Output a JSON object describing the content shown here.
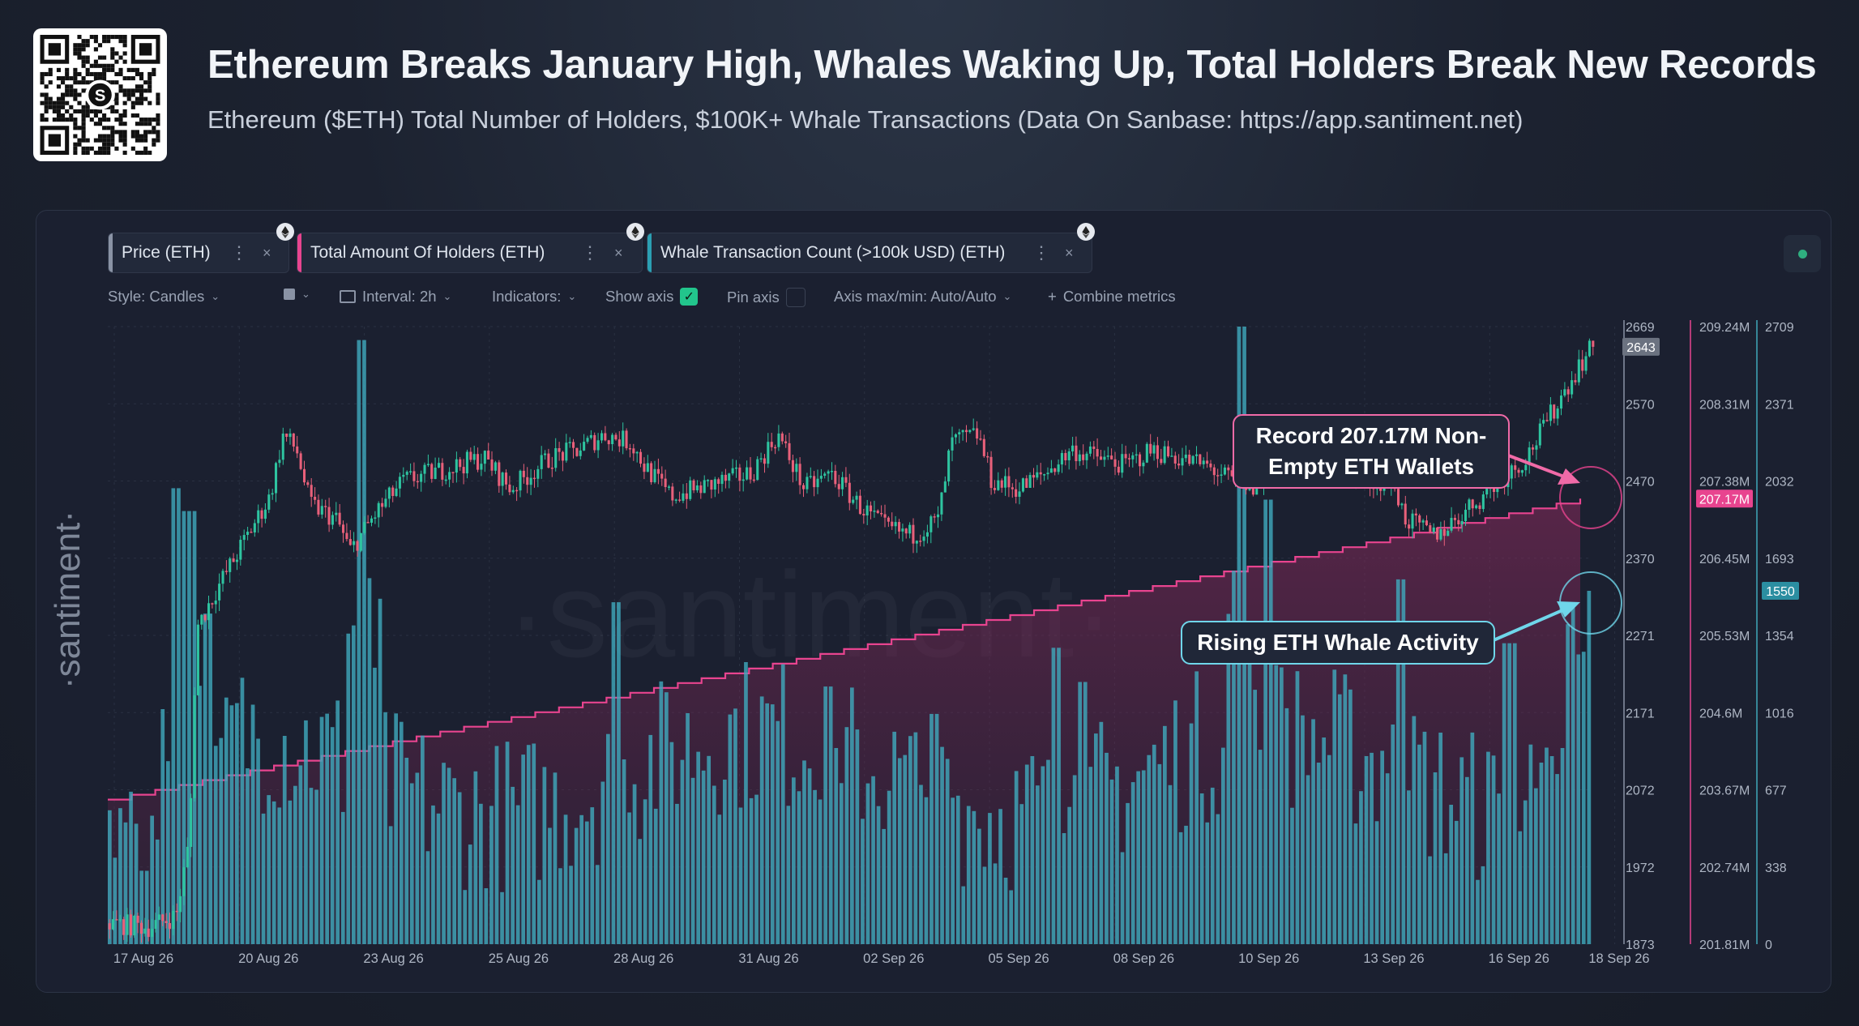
{
  "header": {
    "title": "Ethereum Breaks January High, Whales Waking Up, Total Holders Break New Records",
    "subtitle": "Ethereum ($ETH) Total Number of Holders, $100K+ Whale Transactions (Data On Sanbase: https://app.santiment.net)"
  },
  "tabs": [
    {
      "label": "Price (ETH)",
      "color": "#8a93a5"
    },
    {
      "label": "Total Amount Of Holders (ETH)",
      "color": "#e8448f"
    },
    {
      "label": "Whale Transaction Count (>100k USD) (ETH)",
      "color": "#2b9fb3"
    }
  ],
  "toolbar": {
    "style": "Style: Candles",
    "interval": "Interval: 2h",
    "indicators": "Indicators:",
    "show_axis": "Show axis",
    "pin_axis": "Pin axis",
    "axis_mode": "Axis max/min: Auto/Auto",
    "combine": "Combine metrics"
  },
  "watermark": "·santiment·",
  "annotations": {
    "holders": "Record 207.17M Non-Empty ETH Wallets",
    "whales": "Rising ETH Whale Activity"
  },
  "colors": {
    "price_up": "#2ec4a0",
    "price_down": "#e8607a",
    "holders": "#e8448f",
    "whales": "#3fa7bb",
    "holders_callout_border": "#f06aa7",
    "whales_callout_border": "#6fd6ea"
  },
  "chart_data": {
    "type": "line",
    "x_ticks": [
      "17 Aug 26",
      "20 Aug 26",
      "23 Aug 26",
      "25 Aug 26",
      "28 Aug 26",
      "31 Aug 26",
      "02 Sep 26",
      "05 Sep 26",
      "08 Sep 26",
      "10 Sep 26",
      "13 Sep 26",
      "16 Sep 26",
      "18 Sep 26"
    ],
    "axes": {
      "price": {
        "ticks": [
          "2669",
          "2570",
          "2470",
          "2370",
          "2271",
          "2171",
          "2072",
          "1972",
          "1873"
        ],
        "range": [
          1873,
          2669
        ],
        "last_label": "2643"
      },
      "holders": {
        "ticks": [
          "209.24M",
          "208.31M",
          "207.38M",
          "206.45M",
          "205.53M",
          "204.6M",
          "203.67M",
          "202.74M",
          "201.81M"
        ],
        "range": [
          201.81,
          209.24
        ],
        "last_label": "207.17M"
      },
      "whales": {
        "ticks": [
          "2709",
          "2371",
          "2032",
          "1693",
          "1354",
          "1016",
          "677",
          "338",
          "0"
        ],
        "range": [
          0,
          2709
        ],
        "last_label": "1550"
      }
    },
    "series": [
      {
        "name": "Price (ETH)",
        "type": "candles",
        "anchors": [
          [
            0,
            1900
          ],
          [
            0.03,
            1895
          ],
          [
            0.05,
            1910
          ],
          [
            0.06,
            2010
          ],
          [
            0.065,
            2280
          ],
          [
            0.08,
            2330
          ],
          [
            0.1,
            2390
          ],
          [
            0.12,
            2450
          ],
          [
            0.13,
            2530
          ],
          [
            0.14,
            2510
          ],
          [
            0.15,
            2440
          ],
          [
            0.17,
            2420
          ],
          [
            0.18,
            2380
          ],
          [
            0.2,
            2430
          ],
          [
            0.22,
            2470
          ],
          [
            0.24,
            2480
          ],
          [
            0.26,
            2490
          ],
          [
            0.28,
            2500
          ],
          [
            0.3,
            2460
          ],
          [
            0.33,
            2500
          ],
          [
            0.35,
            2510
          ],
          [
            0.37,
            2530
          ],
          [
            0.39,
            2520
          ],
          [
            0.4,
            2490
          ],
          [
            0.42,
            2450
          ],
          [
            0.44,
            2460
          ],
          [
            0.46,
            2470
          ],
          [
            0.48,
            2480
          ],
          [
            0.5,
            2530
          ],
          [
            0.52,
            2460
          ],
          [
            0.54,
            2480
          ],
          [
            0.56,
            2440
          ],
          [
            0.58,
            2410
          ],
          [
            0.6,
            2400
          ],
          [
            0.62,
            2420
          ],
          [
            0.63,
            2520
          ],
          [
            0.65,
            2530
          ],
          [
            0.66,
            2470
          ],
          [
            0.68,
            2460
          ],
          [
            0.7,
            2480
          ],
          [
            0.72,
            2510
          ],
          [
            0.74,
            2500
          ],
          [
            0.76,
            2490
          ],
          [
            0.78,
            2510
          ],
          [
            0.8,
            2500
          ],
          [
            0.82,
            2490
          ],
          [
            0.84,
            2470
          ],
          [
            0.86,
            2460
          ],
          [
            0.87,
            2560
          ],
          [
            0.88,
            2500
          ],
          [
            0.9,
            2480
          ],
          [
            0.92,
            2490
          ],
          [
            0.94,
            2470
          ],
          [
            0.96,
            2470
          ],
          [
            0.97,
            2420
          ],
          [
            0.98,
            2410
          ],
          [
            0.99,
            2400
          ],
          [
            1.0,
            2410
          ],
          [
            1.02,
            2440
          ],
          [
            1.04,
            2470
          ],
          [
            1.06,
            2500
          ],
          [
            1.08,
            2560
          ],
          [
            1.1,
            2620
          ],
          [
            1.11,
            2643
          ]
        ]
      },
      {
        "name": "Total Amount Of Holders (ETH)",
        "type": "step",
        "start": 203.55,
        "end": 207.17
      },
      {
        "name": "Whale Transaction Count (>100k USD) (ETH)",
        "type": "bar",
        "spikes": [
          [
            0.05,
            2000
          ],
          [
            0.06,
            1900
          ],
          [
            0.075,
            1450
          ],
          [
            0.19,
            2650
          ],
          [
            0.38,
            1500
          ],
          [
            0.54,
            1130
          ],
          [
            0.62,
            1010
          ],
          [
            0.71,
            1300
          ],
          [
            0.73,
            1150
          ],
          [
            0.85,
            2709
          ],
          [
            0.87,
            1950
          ],
          [
            0.97,
            1600
          ],
          [
            1.05,
            1320
          ],
          [
            1.1,
            1550
          ]
        ]
      }
    ]
  }
}
